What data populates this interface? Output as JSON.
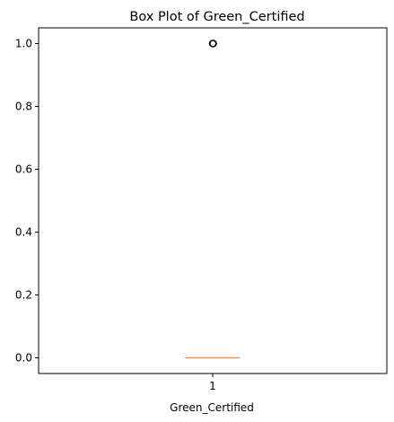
{
  "chart_data": {
    "type": "box",
    "title": "Box Plot of Green_Certified",
    "xlabel": "Green_Certified",
    "ylabel": "",
    "categories": [
      "1"
    ],
    "ylim": [
      -0.05,
      1.05
    ],
    "yticks": [
      0.0,
      0.2,
      0.4,
      0.6,
      0.8,
      1.0
    ],
    "ytick_labels": [
      "0.0",
      "0.2",
      "0.4",
      "0.6",
      "0.8",
      "1.0"
    ],
    "xtick_labels": [
      "1"
    ],
    "grid": false,
    "series": [
      {
        "min": 0.0,
        "q1": 0.0,
        "median": 0.0,
        "q3": 0.0,
        "max": 0.0,
        "outliers": [
          1.0,
          1.0,
          1.0,
          1.0,
          1.0
        ]
      }
    ],
    "colors": {
      "median": "#e8964e",
      "box": "#000000",
      "outlier": "#000000"
    }
  }
}
